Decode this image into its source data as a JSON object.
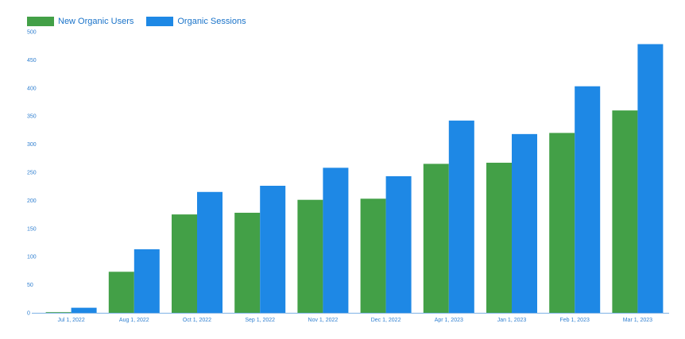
{
  "chart_data": {
    "type": "bar",
    "categories": [
      "Jul 1, 2022",
      "Aug 1, 2022",
      "Oct 1, 2022",
      "Sep 1, 2022",
      "Nov 1, 2022",
      "Dec 1, 2022",
      "Apr 1, 2023",
      "Jan 1, 2023",
      "Feb 1, 2023",
      "Mar 1, 2023"
    ],
    "series": [
      {
        "name": "New Organic Users",
        "color": "#43a047",
        "values": [
          1,
          73,
          175,
          178,
          201,
          203,
          265,
          267,
          320,
          360
        ]
      },
      {
        "name": "Organic Sessions",
        "color": "#1e88e5",
        "values": [
          9,
          113,
          215,
          226,
          258,
          243,
          342,
          318,
          403,
          478
        ]
      }
    ],
    "yticks": [
      0,
      50,
      100,
      150,
      200,
      250,
      300,
      350,
      400,
      450,
      500
    ],
    "ylim": [
      0,
      500
    ],
    "grid": false,
    "legend_position": "top-left"
  }
}
